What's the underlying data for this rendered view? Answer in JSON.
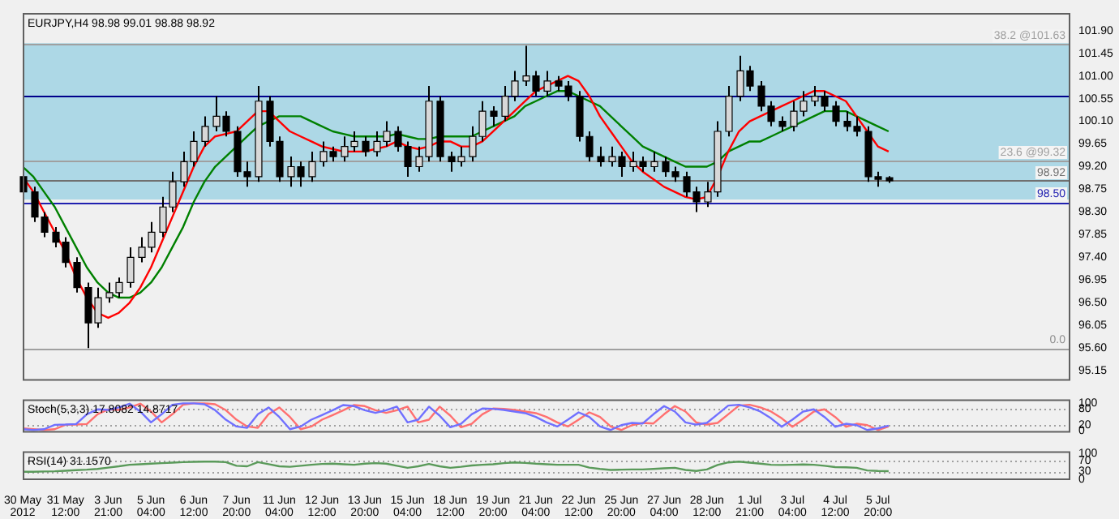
{
  "chart_data": [
    {
      "type": "candlestick",
      "title": "EURJPY,H4 98.98 99.01 98.88 98.92",
      "tick_labels": "y",
      "marker": "none",
      "categories": [
        null,
        null,
        null,
        null,
        null,
        null,
        null,
        null,
        null,
        null,
        null,
        null,
        null,
        null,
        null,
        null,
        null,
        null,
        null,
        null,
        null,
        null,
        null,
        null,
        null,
        null,
        null,
        null,
        null,
        null,
        null,
        null,
        null,
        null,
        null,
        null,
        null,
        null,
        null,
        null,
        null,
        null,
        null,
        null,
        null,
        null,
        null,
        null,
        null,
        null,
        null,
        null,
        null,
        null,
        null,
        null,
        null,
        null,
        null,
        null,
        null,
        null,
        null,
        null,
        null,
        null,
        null,
        null,
        null,
        null,
        null,
        null,
        null,
        null,
        null,
        null,
        null,
        null,
        null,
        null,
        null,
        null
      ],
      "annotations": [
        {
          "text": "0.0",
          "y": 95.6
        }
      ],
      "ohlc": [
        [
          99.0,
          99.1,
          98.6,
          98.7
        ],
        [
          98.7,
          98.8,
          98.1,
          98.2
        ],
        [
          98.2,
          98.3,
          97.8,
          97.9
        ],
        [
          97.9,
          98.0,
          97.6,
          97.7
        ],
        [
          97.7,
          97.8,
          97.2,
          97.3
        ],
        [
          97.3,
          97.4,
          96.7,
          96.8
        ],
        [
          96.8,
          96.9,
          95.6,
          96.1
        ],
        [
          96.1,
          96.8,
          96.0,
          96.6
        ],
        [
          96.6,
          96.9,
          96.5,
          96.7
        ],
        [
          96.7,
          97.0,
          96.6,
          96.9
        ],
        [
          96.9,
          97.6,
          96.8,
          97.4
        ],
        [
          97.4,
          97.8,
          97.3,
          97.6
        ],
        [
          97.6,
          98.1,
          97.5,
          97.9
        ],
        [
          97.9,
          98.6,
          97.8,
          98.4
        ],
        [
          98.4,
          99.1,
          98.3,
          98.9
        ],
        [
          98.9,
          99.5,
          98.8,
          99.3
        ],
        [
          99.3,
          99.9,
          99.2,
          99.7
        ],
        [
          99.7,
          100.2,
          99.6,
          100.0
        ],
        [
          100.0,
          100.6,
          99.9,
          100.2
        ],
        [
          100.2,
          100.3,
          99.8,
          99.9
        ],
        [
          99.9,
          100.0,
          99.0,
          99.1
        ],
        [
          99.1,
          99.3,
          98.8,
          99.0
        ],
        [
          99.0,
          100.8,
          98.9,
          100.5
        ],
        [
          100.5,
          100.6,
          99.6,
          99.7
        ],
        [
          99.7,
          99.8,
          98.9,
          99.0
        ],
        [
          99.0,
          99.4,
          98.8,
          99.2
        ],
        [
          99.2,
          99.3,
          98.8,
          99.0
        ],
        [
          99.0,
          99.5,
          98.9,
          99.3
        ],
        [
          99.3,
          99.7,
          99.2,
          99.5
        ],
        [
          99.5,
          99.6,
          99.3,
          99.4
        ],
        [
          99.4,
          99.8,
          99.3,
          99.6
        ],
        [
          99.6,
          99.9,
          99.5,
          99.7
        ],
        [
          99.7,
          99.8,
          99.4,
          99.5
        ],
        [
          99.5,
          99.9,
          99.4,
          99.7
        ],
        [
          99.7,
          100.1,
          99.6,
          99.9
        ],
        [
          99.9,
          100.0,
          99.5,
          99.6
        ],
        [
          99.6,
          99.7,
          99.0,
          99.2
        ],
        [
          99.2,
          99.6,
          99.1,
          99.4
        ],
        [
          99.4,
          100.8,
          99.3,
          100.5
        ],
        [
          100.5,
          100.6,
          99.3,
          99.4
        ],
        [
          99.4,
          99.5,
          99.1,
          99.3
        ],
        [
          99.3,
          99.6,
          99.2,
          99.4
        ],
        [
          99.4,
          100.0,
          99.3,
          99.8
        ],
        [
          99.8,
          100.5,
          99.7,
          100.3
        ],
        [
          100.3,
          100.4,
          100.0,
          100.2
        ],
        [
          100.2,
          100.8,
          100.1,
          100.6
        ],
        [
          100.6,
          101.1,
          100.5,
          100.9
        ],
        [
          100.9,
          101.6,
          100.8,
          101.0
        ],
        [
          101.0,
          101.1,
          100.6,
          100.7
        ],
        [
          100.7,
          101.1,
          100.6,
          100.9
        ],
        [
          100.9,
          101.0,
          100.7,
          100.8
        ],
        [
          100.8,
          100.9,
          100.5,
          100.6
        ],
        [
          100.6,
          100.7,
          99.7,
          99.8
        ],
        [
          99.8,
          99.9,
          99.3,
          99.4
        ],
        [
          99.4,
          99.6,
          99.2,
          99.3
        ],
        [
          99.3,
          99.6,
          99.2,
          99.4
        ],
        [
          99.4,
          99.5,
          99.0,
          99.2
        ],
        [
          99.2,
          99.5,
          99.1,
          99.3
        ],
        [
          99.3,
          99.4,
          99.1,
          99.2
        ],
        [
          99.2,
          99.5,
          99.1,
          99.3
        ],
        [
          99.3,
          99.4,
          99.0,
          99.1
        ],
        [
          99.1,
          99.2,
          98.9,
          99.0
        ],
        [
          99.0,
          99.1,
          98.6,
          98.7
        ],
        [
          98.7,
          98.8,
          98.3,
          98.5
        ],
        [
          98.5,
          98.9,
          98.4,
          98.7
        ],
        [
          98.7,
          100.1,
          98.6,
          99.9
        ],
        [
          99.9,
          100.8,
          99.8,
          100.6
        ],
        [
          100.6,
          101.4,
          100.5,
          101.1
        ],
        [
          101.1,
          101.2,
          100.7,
          100.8
        ],
        [
          100.8,
          100.9,
          100.3,
          100.4
        ],
        [
          100.4,
          100.5,
          100.0,
          100.1
        ],
        [
          100.1,
          100.2,
          99.9,
          100.0
        ],
        [
          100.0,
          100.5,
          99.9,
          100.3
        ],
        [
          100.3,
          100.7,
          100.2,
          100.5
        ],
        [
          100.5,
          100.8,
          100.4,
          100.6
        ],
        [
          100.6,
          100.7,
          100.3,
          100.4
        ],
        [
          100.4,
          100.5,
          100.0,
          100.1
        ],
        [
          100.1,
          100.3,
          99.9,
          100.0
        ],
        [
          100.0,
          100.2,
          99.8,
          99.9
        ],
        [
          99.9,
          100.0,
          98.9,
          99.0
        ],
        [
          99.0,
          99.1,
          98.8,
          98.95
        ],
        [
          98.98,
          99.01,
          98.88,
          98.92
        ]
      ],
      "series": [
        {
          "type": "line",
          "color": "#ff0000",
          "values": [
            99.0,
            98.7,
            98.3,
            97.9,
            97.5,
            97.0,
            96.6,
            96.3,
            96.2,
            96.3,
            96.5,
            96.8,
            97.2,
            97.7,
            98.2,
            98.7,
            99.2,
            99.6,
            99.8,
            99.85,
            99.9,
            100.1,
            100.3,
            100.3,
            100.1,
            99.9,
            99.8,
            99.7,
            99.6,
            99.55,
            99.5,
            99.5,
            99.5,
            99.55,
            99.6,
            99.7,
            99.6,
            99.55,
            99.6,
            99.7,
            99.7,
            99.6,
            99.6,
            99.7,
            99.9,
            100.1,
            100.3,
            100.5,
            100.7,
            100.8,
            100.9,
            101.0,
            100.9,
            100.6,
            100.2,
            99.9,
            99.6,
            99.3,
            99.1,
            98.95,
            98.8,
            98.7,
            98.6,
            98.55,
            98.6,
            99.0,
            99.5,
            99.9,
            100.1,
            100.2,
            100.3,
            100.4,
            100.5,
            100.6,
            100.7,
            100.7,
            100.6,
            100.5,
            100.2,
            99.9,
            99.6,
            99.5
          ]
        },
        {
          "type": "line",
          "color": "#008000",
          "values": [
            99.2,
            99.0,
            98.7,
            98.4,
            98.0,
            97.6,
            97.2,
            96.9,
            96.7,
            96.6,
            96.6,
            96.7,
            96.9,
            97.2,
            97.6,
            98.0,
            98.5,
            98.9,
            99.2,
            99.4,
            99.6,
            99.8,
            100.0,
            100.1,
            100.2,
            100.2,
            100.2,
            100.1,
            100.0,
            99.9,
            99.85,
            99.8,
            99.8,
            99.8,
            99.8,
            99.85,
            99.8,
            99.75,
            99.75,
            99.8,
            99.8,
            99.8,
            99.8,
            99.9,
            100.0,
            100.1,
            100.2,
            100.4,
            100.5,
            100.6,
            100.7,
            100.7,
            100.6,
            100.5,
            100.4,
            100.2,
            100.0,
            99.8,
            99.6,
            99.5,
            99.4,
            99.3,
            99.2,
            99.2,
            99.2,
            99.3,
            99.5,
            99.6,
            99.7,
            99.7,
            99.8,
            99.9,
            100.0,
            100.1,
            100.2,
            100.3,
            100.3,
            100.3,
            100.2,
            100.1,
            100.0,
            99.9
          ]
        }
      ],
      "ylim": [
        94.95,
        102.25
      ],
      "yticks": [
        95.15,
        {
          "value": 95.6,
          "label": "95.60"
        },
        96.05,
        {
          "value": 96.5,
          "label": "96.50"
        },
        96.95,
        {
          "value": 97.4,
          "label": "97.40"
        },
        97.85,
        {
          "value": 98.3,
          "label": "98.30"
        },
        98.75,
        {
          "value": 99.2,
          "label": "99.20"
        },
        99.65,
        {
          "value": 100.1,
          "label": "100.10"
        },
        100.55,
        {
          "value": 101.0,
          "label": "101.00"
        },
        101.45,
        {
          "value": 101.9,
          "label": "101.90"
        }
      ],
      "bands": [
        {
          "axis": "y",
          "from": 98.55,
          "to": 101.65,
          "color": "#add8e6"
        }
      ],
      "ref_lines": [
        {
          "axis": "y",
          "value": 101.63,
          "label": "38.2 @101.63",
          "color": "#a0a0a0"
        },
        {
          "axis": "y",
          "value": 99.32,
          "label": "23.6 @99.32",
          "color": "#a0a0a0"
        },
        {
          "axis": "y",
          "value": 95.6,
          "color": "#a0a0a0"
        },
        {
          "axis": "y",
          "value": 100.6,
          "color": "#00008b"
        },
        {
          "axis": "y",
          "value": 98.5,
          "label": "98.50",
          "color": "#2020b0"
        },
        {
          "axis": "y",
          "value": 98.92,
          "label": "98.92",
          "color": "#707070"
        }
      ]
    },
    {
      "type": "line",
      "title": "Stoch(5,3,3) 17.8082 14.8717",
      "tick_labels": "y",
      "marker": "none",
      "categories": [
        null,
        null,
        null,
        null,
        null,
        null,
        null,
        null,
        null,
        null,
        null,
        null,
        null,
        null,
        null,
        null,
        null,
        null,
        null,
        null,
        null,
        null,
        null,
        null,
        null,
        null,
        null,
        null,
        null,
        null,
        null,
        null,
        null,
        null,
        null,
        null,
        null,
        null,
        null,
        null,
        null,
        null,
        null,
        null,
        null,
        null,
        null,
        null,
        null,
        null,
        null,
        null,
        null,
        null,
        null,
        null,
        null,
        null,
        null,
        null,
        null,
        null,
        null,
        null,
        null,
        null,
        null,
        null,
        null,
        null,
        null,
        null,
        null,
        null,
        null,
        null,
        null,
        null,
        null,
        null,
        null,
        null
      ],
      "series": [
        {
          "color": "#7070ff",
          "values": [
            5,
            2,
            5,
            21,
            22,
            24,
            60,
            78,
            76,
            85,
            99,
            70,
            30,
            60,
            95,
            100,
            100,
            97,
            75,
            40,
            15,
            10,
            60,
            85,
            50,
            5,
            15,
            40,
            57,
            75,
            94,
            90,
            75,
            65,
            75,
            88,
            30,
            40,
            88,
            55,
            12,
            25,
            60,
            81,
            80,
            76,
            70,
            64,
            50,
            30,
            15,
            40,
            67,
            50,
            15,
            2,
            20,
            28,
            26,
            60,
            90,
            70,
            30,
            22,
            28,
            60,
            92,
            95,
            85,
            70,
            45,
            14,
            40,
            70,
            78,
            50,
            14,
            25,
            20,
            2,
            8,
            17.8082
          ]
        },
        {
          "color": "#ff7070",
          "values": [
            8,
            5,
            2,
            5,
            21,
            22,
            24,
            60,
            78,
            76,
            85,
            99,
            70,
            30,
            60,
            95,
            100,
            100,
            97,
            75,
            40,
            15,
            10,
            60,
            85,
            50,
            5,
            15,
            40,
            57,
            75,
            94,
            90,
            75,
            65,
            75,
            88,
            30,
            40,
            88,
            55,
            12,
            25,
            60,
            81,
            80,
            76,
            70,
            64,
            50,
            30,
            15,
            40,
            67,
            50,
            15,
            2,
            20,
            28,
            26,
            60,
            90,
            70,
            30,
            22,
            28,
            60,
            92,
            95,
            85,
            70,
            45,
            14,
            40,
            70,
            78,
            50,
            14,
            25,
            20,
            2,
            14.8717
          ]
        }
      ],
      "ylim": [
        -8,
        115
      ],
      "yticks": [
        0,
        20,
        80,
        100
      ],
      "ref_lines": [
        {
          "axis": "y",
          "value": 20,
          "color": "#a0a0a0",
          "line_style": "dotted"
        },
        {
          "axis": "y",
          "value": 80,
          "color": "#a0a0a0",
          "line_style": "dotted"
        }
      ]
    },
    {
      "type": "line",
      "title": "RSI(14) 31.1570",
      "marker": "none",
      "categories": [
        "30 May 2012",
        null,
        null,
        null,
        "31 May 12:00",
        null,
        null,
        null,
        "3 Jun 21:00",
        null,
        null,
        null,
        "5 Jun 04:00",
        null,
        null,
        null,
        "6 Jun 12:00",
        null,
        null,
        null,
        "7 Jun 20:00",
        null,
        null,
        null,
        "11 Jun 04:00",
        null,
        null,
        null,
        "12 Jun 12:00",
        null,
        null,
        null,
        "13 Jun 20:00",
        null,
        null,
        null,
        "15 Jun 04:00",
        null,
        null,
        null,
        "18 Jun 12:00",
        null,
        null,
        null,
        "19 Jun 20:00",
        null,
        null,
        null,
        "21 Jun 04:00",
        null,
        null,
        null,
        "22 Jun 12:00",
        null,
        null,
        null,
        "25 Jun 20:00",
        null,
        null,
        null,
        "27 Jun 04:00",
        null,
        null,
        null,
        "28 Jun 12:00",
        null,
        null,
        null,
        "1 Jul 21:00",
        null,
        null,
        null,
        "3 Jul 04:00",
        null,
        null,
        null,
        "4 Jul 12:00",
        null,
        null,
        null,
        "5 Jul 20:00",
        null
      ],
      "series": [
        {
          "color": "#5a9a5a",
          "values": [
            29,
            29,
            30,
            31,
            33,
            35,
            37,
            40,
            45,
            50,
            56,
            58,
            60,
            62,
            64,
            66,
            67,
            68,
            68,
            66,
            52,
            50,
            66,
            58,
            50,
            48,
            52,
            56,
            59,
            60,
            58,
            56,
            60,
            62,
            60,
            52,
            44,
            50,
            59,
            50,
            44,
            48,
            53,
            56,
            58,
            62,
            65,
            63,
            60,
            58,
            56,
            56,
            56,
            45,
            40,
            36,
            37,
            38,
            38,
            40,
            42,
            44,
            36,
            32,
            38,
            55,
            65,
            68,
            64,
            60,
            56,
            55,
            56,
            57,
            56,
            52,
            47,
            46,
            44,
            34,
            32,
            31.157
          ]
        }
      ],
      "ylim": [
        -3,
        108
      ],
      "yticks": [
        0,
        30,
        70,
        100
      ],
      "ref_lines": [
        {
          "axis": "y",
          "value": 30,
          "color": "#a0a0a0",
          "line_style": "dotted"
        },
        {
          "axis": "y",
          "value": 70,
          "color": "#a0a0a0",
          "line_style": "dotted"
        }
      ]
    }
  ]
}
